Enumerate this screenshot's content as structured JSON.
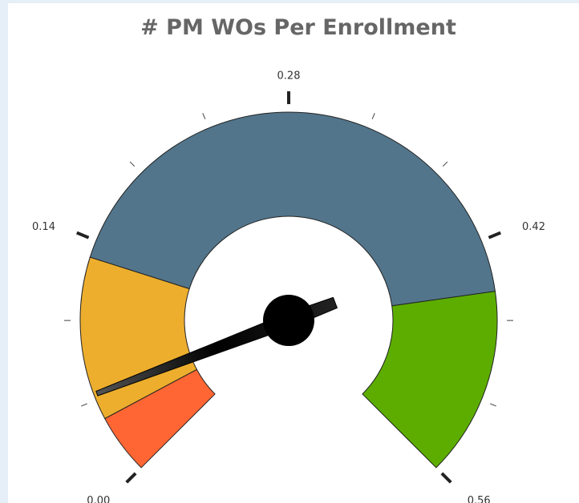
{
  "chart_data": {
    "type": "gauge",
    "title": "# PM WOs Per Enrollment",
    "min": 0,
    "max": 0.56,
    "value": 0.05,
    "bands": [
      {
        "from": 0,
        "to": 0.035,
        "color": "#ff6633"
      },
      {
        "from": 0.035,
        "to": 0.13,
        "color": "#edae2e"
      },
      {
        "from": 0.13,
        "to": 0.45,
        "color": "#52758b"
      },
      {
        "from": 0.45,
        "to": 0.56,
        "color": "#5cad00"
      }
    ],
    "ticks": [
      {
        "value": 0,
        "label": "0.00"
      },
      0.14,
      0.28,
      0.42,
      0.56
    ],
    "minor_ticks": [
      0.0467,
      0.0933,
      0.1867,
      0.2333,
      0.3267,
      0.3733,
      0.4667,
      0.5133
    ]
  }
}
